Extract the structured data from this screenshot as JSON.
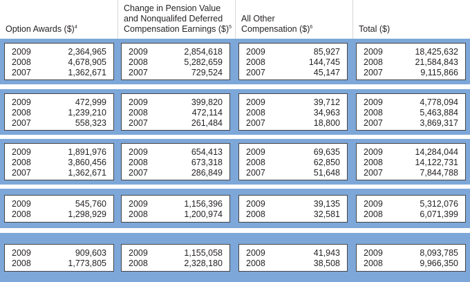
{
  "headers": [
    {
      "lines": [
        "Option Awards ($)"
      ],
      "sup": "4"
    },
    {
      "lines": [
        "Change in Pension Value",
        "and Nonqualifed Deferred",
        "Compensation Earnings ($)"
      ],
      "sup": "5"
    },
    {
      "lines": [
        "All Other",
        "Compensation ($)"
      ],
      "sup": "6"
    },
    {
      "lines": [
        "Total ($)"
      ],
      "sup": ""
    }
  ],
  "groups": [
    {
      "years": [
        "2009",
        "2008",
        "2007"
      ],
      "option_awards": [
        "2,364,965",
        "4,678,905",
        "1,362,671"
      ],
      "pension_change": [
        "2,854,618",
        "5,282,659",
        "729,524"
      ],
      "all_other": [
        "85,927",
        "144,745",
        "45,147"
      ],
      "total": [
        "18,425,632",
        "21,584,843",
        "9,115,866"
      ]
    },
    {
      "years": [
        "2009",
        "2008",
        "2007"
      ],
      "option_awards": [
        "472,999",
        "1,239,210",
        "558,323"
      ],
      "pension_change": [
        "399,820",
        "472,114",
        "261,484"
      ],
      "all_other": [
        "39,712",
        "34,963",
        "18,800"
      ],
      "total": [
        "4,778,094",
        "5,463,884",
        "3,869,317"
      ]
    },
    {
      "years": [
        "2009",
        "2008",
        "2007"
      ],
      "option_awards": [
        "1,891,976",
        "3,860,456",
        "1,362,671"
      ],
      "pension_change": [
        "654,413",
        "673,318",
        "286,849"
      ],
      "all_other": [
        "69,635",
        "62,850",
        "51,648"
      ],
      "total": [
        "14,284,044",
        "14,122,731",
        "7,844,788"
      ]
    },
    {
      "years": [
        "2009",
        "2008"
      ],
      "option_awards": [
        "545,760",
        "1,298,929"
      ],
      "pension_change": [
        "1,156,396",
        "1,200,974"
      ],
      "all_other": [
        "39,135",
        "32,581"
      ],
      "total": [
        "5,312,076",
        "6,071,399"
      ]
    },
    {
      "years": [
        "2009",
        "2008"
      ],
      "option_awards": [
        "909,603",
        "1,773,805"
      ],
      "pension_change": [
        "1,155,058",
        "2,328,180"
      ],
      "all_other": [
        "41,943",
        "38,508"
      ],
      "total": [
        "8,093,785",
        "9,966,350"
      ]
    }
  ],
  "colors": {
    "band": "#7da7d9",
    "cell_border": "#444444",
    "text": "#231f20"
  }
}
